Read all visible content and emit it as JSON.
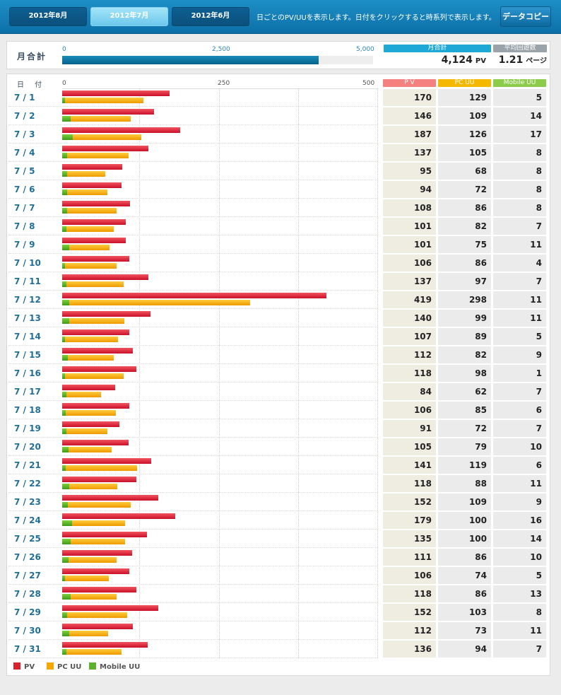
{
  "header": {
    "tabs": [
      {
        "label": "2012年8月",
        "active": false
      },
      {
        "label": "2012年7月",
        "active": true
      },
      {
        "label": "2012年6月",
        "active": false
      }
    ],
    "description": "日ごとのPV/UUを表示します。日付をクリックすると時系列で表示します。",
    "copy_button": "データコピー"
  },
  "summary": {
    "label": "月合計",
    "ticks": [
      "0",
      "2,500",
      "5,000"
    ],
    "max": 5000,
    "total_header": "月合計",
    "total_value": "4,124",
    "total_unit": "PV",
    "avg_header": "平均回遊数",
    "avg_value": "1.21",
    "avg_unit": "ページ"
  },
  "table": {
    "date_header": "日 付",
    "axis_ticks": [
      "0",
      "250",
      "500"
    ],
    "pv_header": "P V",
    "pcuu_header": "PC UU",
    "mobuu_header": "Mobile UU"
  },
  "legend": {
    "pv": "PV",
    "pcuu": "PC UU",
    "mobuu": "Mobile UU"
  },
  "colors": {
    "pv": "#d9222e",
    "pcuu": "#f4a800",
    "mobuu": "#5cb22a"
  },
  "chart_data": {
    "type": "bar",
    "xlim": [
      0,
      500
    ],
    "categories": [
      "7 / 1",
      "7 / 2",
      "7 / 3",
      "7 / 4",
      "7 / 5",
      "7 / 6",
      "7 / 7",
      "7 / 8",
      "7 / 9",
      "7 / 10",
      "7 / 11",
      "7 / 12",
      "7 / 13",
      "7 / 14",
      "7 / 15",
      "7 / 16",
      "7 / 17",
      "7 / 18",
      "7 / 19",
      "7 / 20",
      "7 / 21",
      "7 / 22",
      "7 / 23",
      "7 / 24",
      "7 / 25",
      "7 / 26",
      "7 / 27",
      "7 / 28",
      "7 / 29",
      "7 / 30",
      "7 / 31"
    ],
    "series": [
      {
        "name": "PV",
        "values": [
          170,
          146,
          187,
          137,
          95,
          94,
          108,
          101,
          101,
          106,
          137,
          419,
          140,
          107,
          112,
          118,
          84,
          106,
          91,
          105,
          141,
          118,
          152,
          179,
          135,
          111,
          106,
          118,
          152,
          112,
          136
        ]
      },
      {
        "name": "PC UU",
        "values": [
          129,
          109,
          126,
          105,
          68,
          72,
          86,
          82,
          75,
          86,
          97,
          298,
          99,
          89,
          82,
          98,
          62,
          85,
          72,
          79,
          119,
          88,
          109,
          100,
          100,
          86,
          74,
          86,
          103,
          73,
          94
        ]
      },
      {
        "name": "Mobile UU",
        "values": [
          5,
          14,
          17,
          8,
          8,
          8,
          8,
          7,
          11,
          4,
          7,
          11,
          11,
          5,
          9,
          1,
          7,
          6,
          7,
          10,
          6,
          11,
          9,
          16,
          14,
          10,
          5,
          13,
          8,
          11,
          7
        ]
      }
    ]
  }
}
